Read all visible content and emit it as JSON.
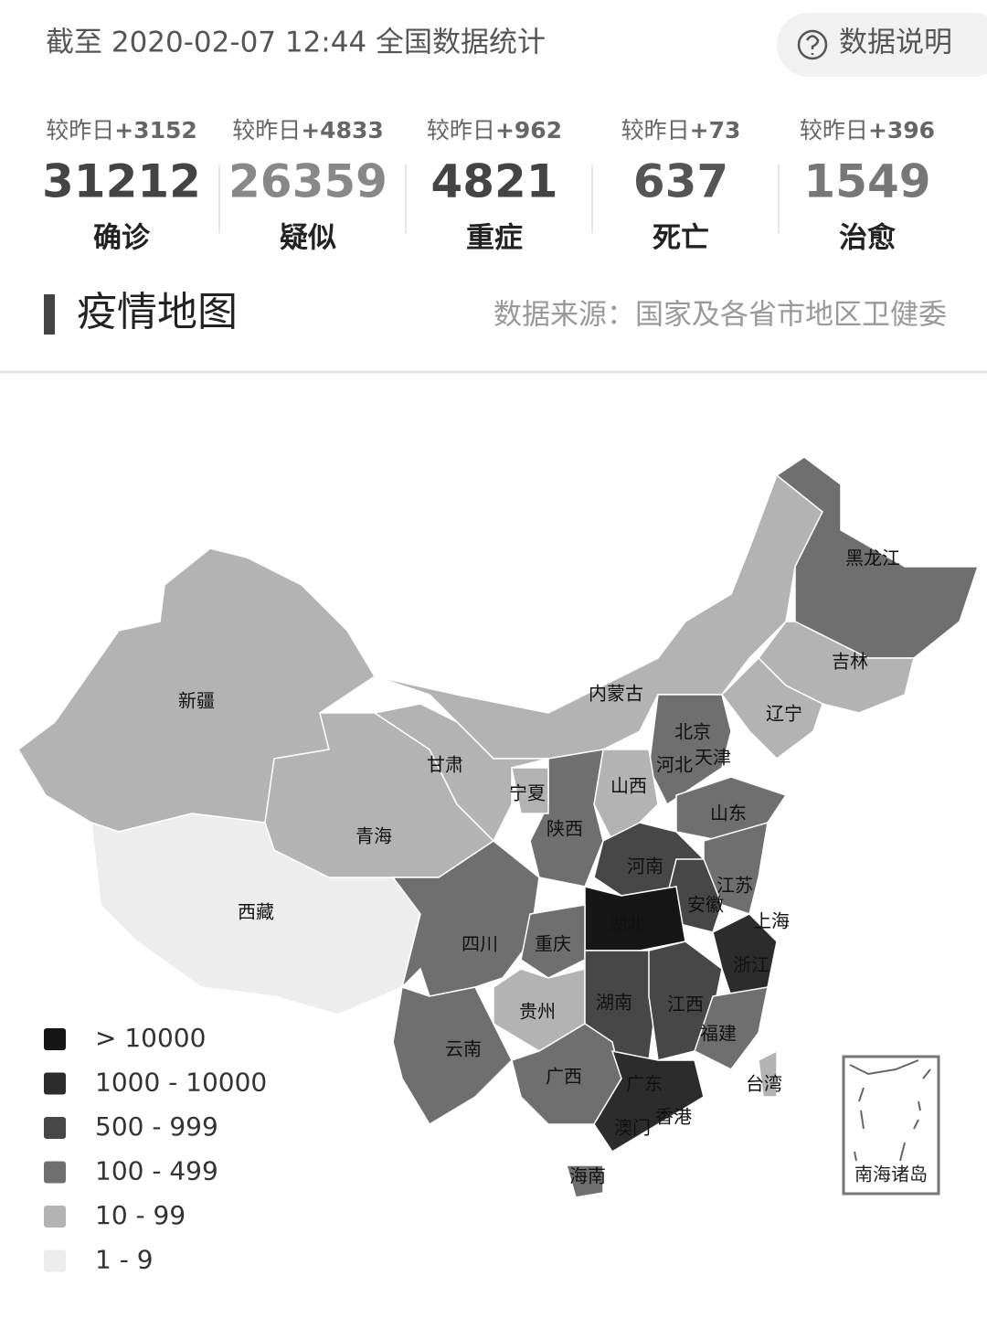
{
  "header": {
    "title": "截至 2020-02-07 12:44 全国数据统计",
    "help_button": "数据说明"
  },
  "stats": [
    {
      "change_prefix": "较昨日",
      "change": "+3152",
      "value": 31212,
      "label": "确诊"
    },
    {
      "change_prefix": "较昨日",
      "change": "+4833",
      "value": 26359,
      "label": "疑似"
    },
    {
      "change_prefix": "较昨日",
      "change": "+962",
      "value": 4821,
      "label": "重症"
    },
    {
      "change_prefix": "较昨日",
      "change": "+73",
      "value": 637,
      "label": "死亡"
    },
    {
      "change_prefix": "较昨日",
      "change": "+396",
      "value": 1549,
      "label": "治愈"
    }
  ],
  "section": {
    "title": "疫情地图",
    "source": "数据来源：国家及各省市地区卫健委"
  },
  "map": {
    "regions": [
      "黑龙江",
      "吉林",
      "辽宁",
      "内蒙古",
      "新疆",
      "北京",
      "天津",
      "河北",
      "山西",
      "甘肃",
      "宁夏",
      "山东",
      "青海",
      "陕西",
      "河南",
      "江苏",
      "西藏",
      "安徽",
      "上海",
      "湖北",
      "四川",
      "重庆",
      "浙江",
      "湖南",
      "江西",
      "贵州",
      "福建",
      "云南",
      "广西",
      "广东",
      "台湾",
      "香港",
      "澳门",
      "海南"
    ],
    "inset_label": "南海诸岛",
    "legend": [
      {
        "label": "> 10000",
        "color": "#161616"
      },
      {
        "label": "1000 - 10000",
        "color": "#2c2c2c"
      },
      {
        "label": "500 - 999",
        "color": "#474747"
      },
      {
        "label": "100 - 499",
        "color": "#6f6f6f"
      },
      {
        "label": "10 - 99",
        "color": "#b3b3b3"
      },
      {
        "label": "1 - 9",
        "color": "#ededed"
      }
    ]
  }
}
